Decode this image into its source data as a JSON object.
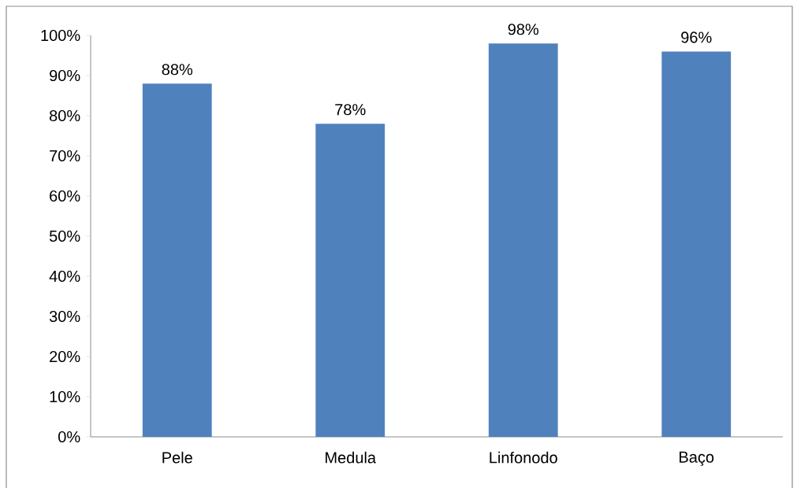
{
  "chart_data": {
    "type": "bar",
    "categories": [
      "Pele",
      "Medula",
      "Linfonodo",
      "Baço"
    ],
    "values": [
      88,
      78,
      98,
      96
    ],
    "value_labels": [
      "88%",
      "78%",
      "98%",
      "96%"
    ],
    "color": "#4f81bd",
    "ylim": [
      0,
      100
    ],
    "yticks": [
      {
        "value": 0,
        "label": "0%"
      },
      {
        "value": 10,
        "label": "10%"
      },
      {
        "value": 20,
        "label": "20%"
      },
      {
        "value": 30,
        "label": "30%"
      },
      {
        "value": 40,
        "label": "40%"
      },
      {
        "value": 50,
        "label": "50%"
      },
      {
        "value": 60,
        "label": "60%"
      },
      {
        "value": 70,
        "label": "70%"
      },
      {
        "value": 80,
        "label": "80%"
      },
      {
        "value": 90,
        "label": "90%"
      },
      {
        "value": 100,
        "label": "100%"
      }
    ]
  }
}
